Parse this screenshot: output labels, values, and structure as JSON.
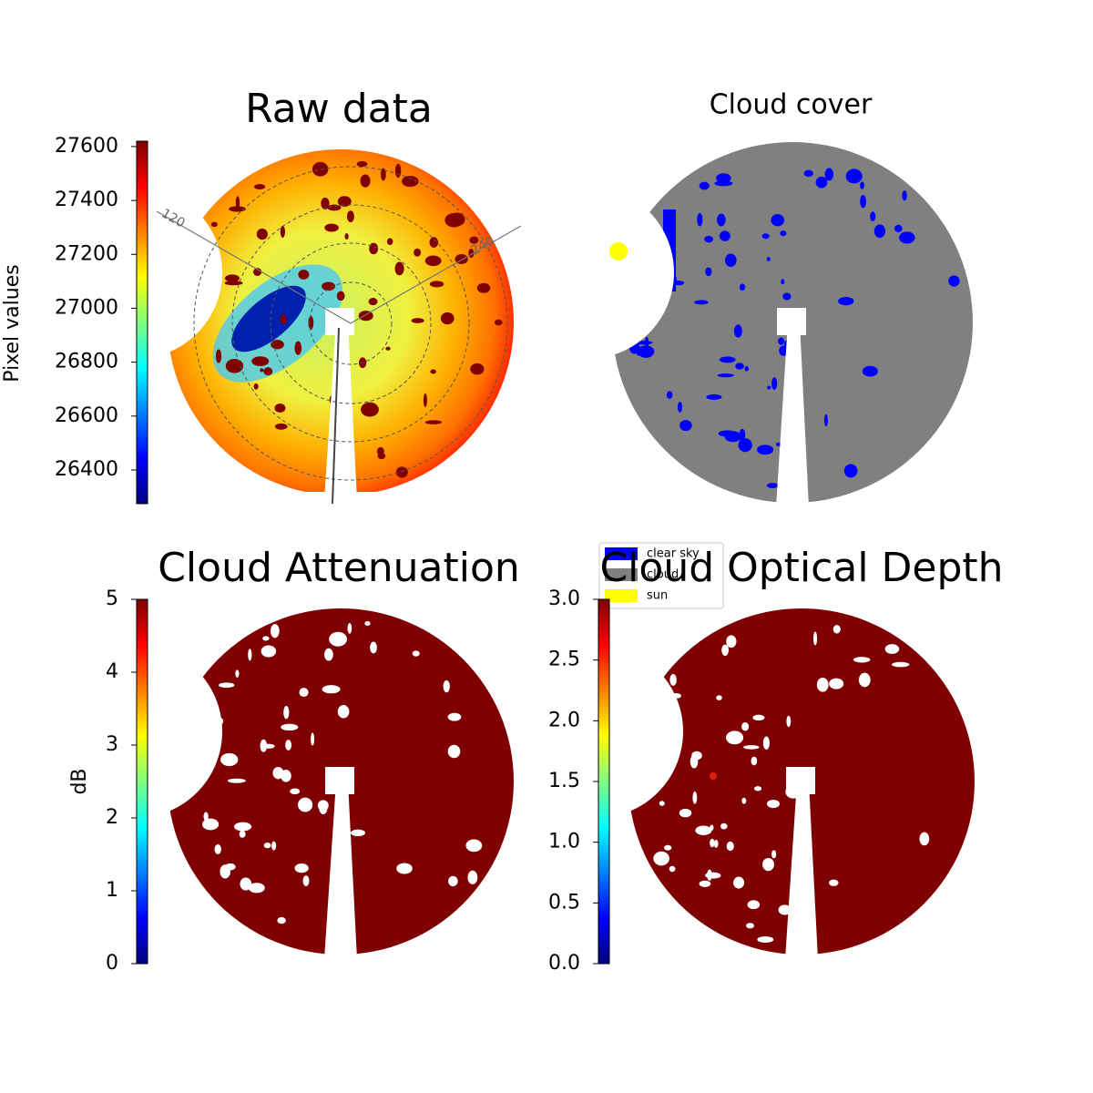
{
  "chart_data": [
    {
      "type": "image",
      "title": "Raw data",
      "colormap": "jet",
      "colorbar": {
        "label": "Pixel values",
        "lim": [
          26275,
          27620
        ],
        "ticks": [
          26400,
          26600,
          26800,
          27000,
          27200,
          27400,
          27600
        ]
      },
      "annotations": [
        "120",
        "240"
      ]
    },
    {
      "type": "image",
      "title": "Cloud cover",
      "legend": [
        {
          "name": "clear sky",
          "color": "#0000ff"
        },
        {
          "name": "cloud",
          "color": "#808080"
        },
        {
          "name": "sun",
          "color": "#ffff00"
        }
      ]
    },
    {
      "type": "image",
      "title": "Cloud Attenuation",
      "colormap": "jet",
      "colorbar": {
        "label": "dB",
        "lim": [
          0,
          5
        ],
        "ticks": [
          0,
          1,
          2,
          3,
          4,
          5
        ]
      }
    },
    {
      "type": "image",
      "title": "Cloud Optical Depth",
      "colormap": "jet",
      "colorbar": {
        "lim": [
          0,
          3
        ],
        "ticks": [
          {
            "value": 0,
            "label": "0.0"
          },
          {
            "value": 0.5,
            "label": "0.5"
          },
          {
            "value": 1,
            "label": "1.0"
          },
          {
            "value": 1.5,
            "label": "1.5"
          },
          {
            "value": 2,
            "label": "2.0"
          },
          {
            "value": 2.5,
            "label": "2.5"
          },
          {
            "value": 3,
            "label": "3.0"
          }
        ]
      }
    }
  ]
}
